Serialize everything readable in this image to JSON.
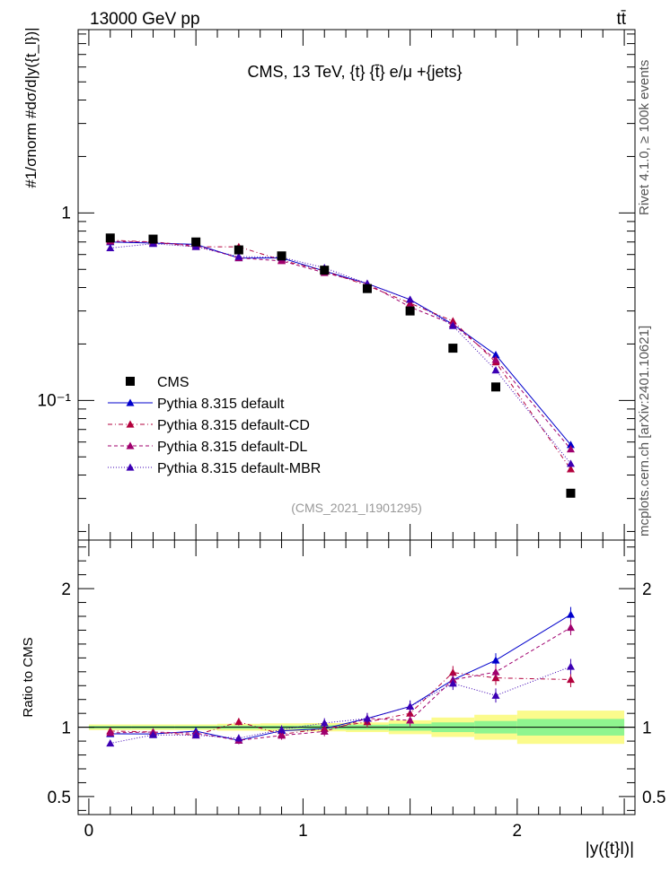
{
  "header": {
    "left": "13000 GeV pp",
    "right": "tt̄"
  },
  "side_labels": {
    "rivet": "Rivet 4.1.0, ≥ 100k events",
    "mcplots": "mcplots.cern.ch [arXiv:2401.10621]"
  },
  "colors": {
    "data": "#000000",
    "default": "#0000cc",
    "cd": "#b3003c",
    "dl": "#a0006e",
    "mbr": "#3c00b4",
    "band_inner": "#8ff58f",
    "band_outer": "#fbfb8c"
  },
  "chart_data": {
    "type": "line",
    "title": "CMS, 13 TeV, {t} {t̄} e/μ +{jets}",
    "watermark": "(CMS_2021_I1901295)",
    "ylabel_main": "#1/σnorm #dσ/d|y({t_l})|",
    "ylabel_ratio": "Ratio to CMS",
    "xlabel": "|y({t}l)|",
    "x_ticks": [
      "0",
      "1",
      "2"
    ],
    "y_ticks_main": [
      "1",
      "10⁻¹"
    ],
    "y_ticks_ratio": [
      "0.5",
      "1",
      "2"
    ],
    "xlim": [
      -0.05,
      2.55
    ],
    "ylim_main": [
      0.018,
      9.5
    ],
    "ylim_ratio": [
      0.37,
      2.35
    ],
    "x": [
      0.1,
      0.3,
      0.5,
      0.7,
      0.9,
      1.1,
      1.3,
      1.5,
      1.7,
      1.9,
      2.25
    ],
    "bin_edges": [
      0,
      0.2,
      0.4,
      0.6,
      0.8,
      1.0,
      1.2,
      1.4,
      1.6,
      1.8,
      2.0,
      2.5
    ],
    "data": [
      0.735,
      0.725,
      0.7,
      0.635,
      0.59,
      0.495,
      0.395,
      0.3,
      0.19,
      0.118,
      0.032
    ],
    "band_inner": [
      0.01,
      0.01,
      0.01,
      0.012,
      0.012,
      0.015,
      0.018,
      0.025,
      0.035,
      0.045,
      0.06
    ],
    "band_outer": [
      0.02,
      0.02,
      0.02,
      0.025,
      0.028,
      0.03,
      0.035,
      0.05,
      0.07,
      0.09,
      0.12
    ],
    "series": [
      {
        "name": "Pythia 8.315 default",
        "color": "#0000cc",
        "dash": "",
        "values": [
          0.7,
          0.69,
          0.68,
          0.575,
          0.575,
          0.49,
          0.42,
          0.345,
          0.255,
          0.175,
          0.058
        ]
      },
      {
        "name": "Pythia 8.315 default-CD",
        "color": "#b3003c",
        "dash": "5,3,1,3",
        "values": [
          0.715,
          0.7,
          0.66,
          0.66,
          0.56,
          0.49,
          0.41,
          0.33,
          0.265,
          0.16,
          0.043
        ]
      },
      {
        "name": "Pythia 8.315 default-DL",
        "color": "#a0006e",
        "dash": "4,3",
        "values": [
          0.705,
          0.7,
          0.67,
          0.575,
          0.555,
          0.48,
          0.42,
          0.315,
          0.255,
          0.165,
          0.055
        ]
      },
      {
        "name": "Pythia 8.315 default-MBR",
        "color": "#3c00b4",
        "dash": "1,2",
        "values": [
          0.65,
          0.685,
          0.66,
          0.585,
          0.58,
          0.51,
          0.42,
          0.345,
          0.25,
          0.145,
          0.046
        ]
      }
    ],
    "legend": {
      "data_label": "CMS",
      "placement": "bottom-left"
    }
  }
}
